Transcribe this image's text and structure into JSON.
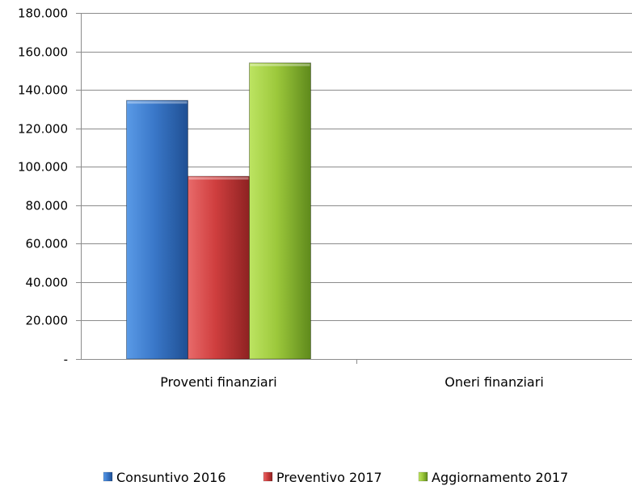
{
  "chart_data": {
    "type": "bar",
    "categories": [
      "Proventi finanziari",
      "Oneri finanziari"
    ],
    "series": [
      {
        "name": "Consuntivo 2016",
        "color": "#3a78c9",
        "values": [
          134500,
          0
        ]
      },
      {
        "name": "Preventivo 2017",
        "color": "#cf3e3e",
        "values": [
          95000,
          0
        ]
      },
      {
        "name": "Aggiornamento 2017",
        "color": "#9cc83b",
        "values": [
          154000,
          0
        ]
      }
    ],
    "ylim": [
      0,
      180000
    ],
    "yticks": [
      0,
      20000,
      40000,
      60000,
      80000,
      100000,
      120000,
      140000,
      160000,
      180000
    ],
    "ytick_labels": [
      "-",
      "20.000",
      "40.000",
      "60.000",
      "80.000",
      "100.000",
      "120.000",
      "140.000",
      "160.000",
      "180.000"
    ],
    "grid": true,
    "legend_position": "bottom"
  }
}
